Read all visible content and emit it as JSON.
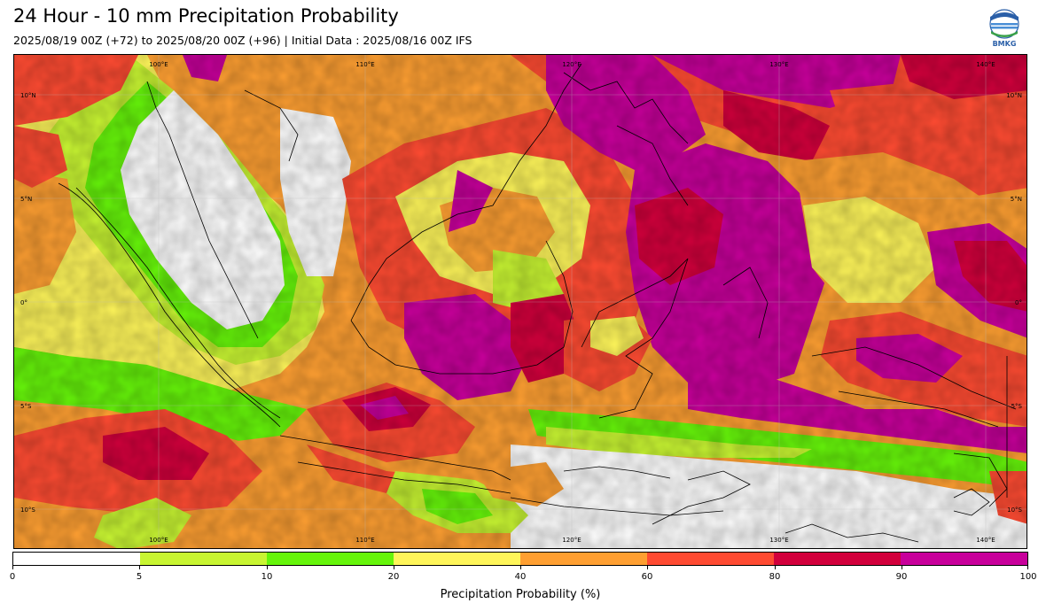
{
  "title": "24 Hour - 10 mm Precipitation Probability",
  "subtitle": "2025/08/19 00Z (+72) to 2025/08/20 00Z (+96) | Initial Data : 2025/08/16 00Z IFS",
  "logo_text": "BMKG",
  "map": {
    "lon_labels_top": [
      "100°E",
      "110°E",
      "120°E",
      "130°E",
      "140°E"
    ],
    "lon_labels_bottom": [
      "100°E",
      "110°E",
      "120°E",
      "130°E",
      "140°E"
    ],
    "lat_labels_left": [
      "10°N",
      "5°N",
      "0°",
      "5°S",
      "10°S"
    ],
    "lat_labels_right": [
      "10°N",
      "5°N",
      "0°",
      "5°S",
      "10°S"
    ]
  },
  "colorbar": {
    "label": "Precipitation Probability (%)",
    "ticks": [
      "0",
      "5",
      "10",
      "20",
      "40",
      "60",
      "80",
      "90",
      "100"
    ],
    "colors": [
      "#ffffff",
      "#c8f532",
      "#66f50a",
      "#fef55a",
      "#fe9f32",
      "#fe4b32",
      "#d2003c",
      "#c8009b"
    ]
  }
}
